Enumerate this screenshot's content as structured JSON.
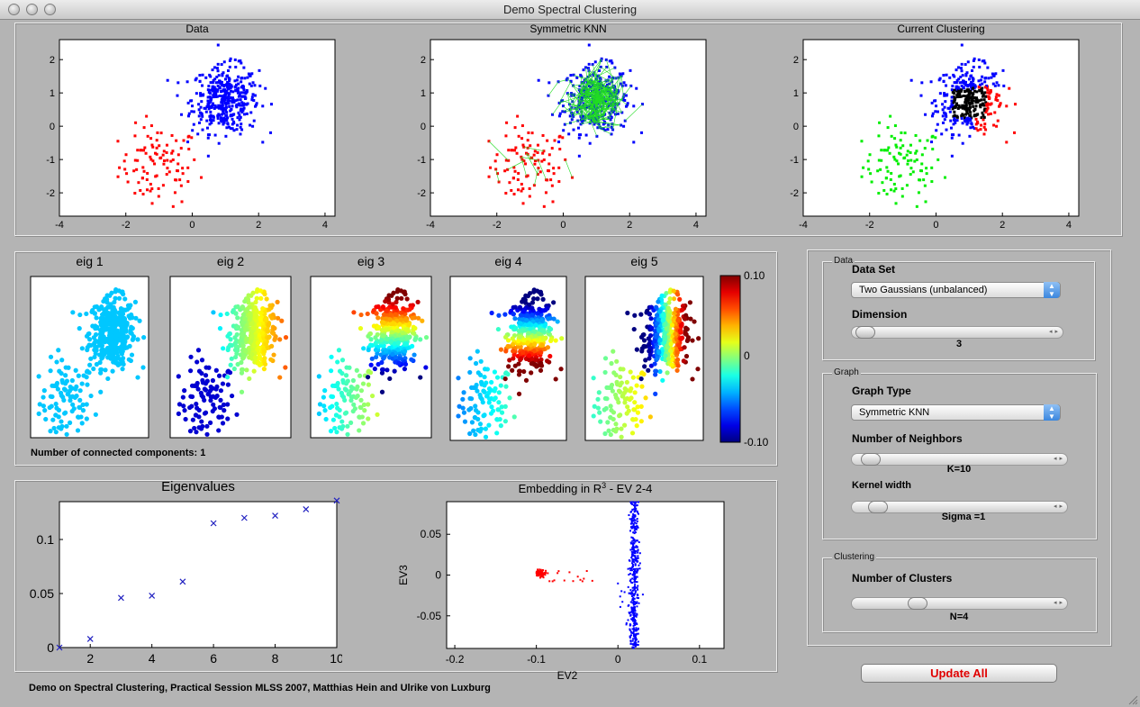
{
  "window": {
    "title": "Demo Spectral Clustering"
  },
  "plots": {
    "data": {
      "title": "Data"
    },
    "knn": {
      "title": "Symmetric KNN"
    },
    "current": {
      "title": "Current Clustering"
    }
  },
  "scatter_ticks": {
    "x": [
      "-4",
      "-2",
      "0",
      "2",
      "4"
    ],
    "y": [
      "2",
      "1",
      "0",
      "-1",
      "-2"
    ]
  },
  "eigs": {
    "titles": [
      "eig 1",
      "eig 2",
      "eig 3",
      "eig 4",
      "eig 5"
    ],
    "components_text": "Number of connected components: 1"
  },
  "colorbar": {
    "ticks": [
      "0.10",
      "0",
      "-0.10"
    ]
  },
  "eigenvalues": {
    "title": "Eigenvalues",
    "xticks": [
      "2",
      "4",
      "6",
      "8",
      "10"
    ],
    "yticks": [
      "0.1",
      "0.05",
      "0"
    ]
  },
  "embedding": {
    "title": "Embedding in R",
    "title_sup": "3",
    "title_suffix": " - EV 2-4",
    "xlabel": "EV2",
    "ylabel": "EV3",
    "xticks": [
      "-0.2",
      "-0.1",
      "0",
      "0.1"
    ],
    "yticks": [
      "0.05",
      "0",
      "-0.05"
    ]
  },
  "controls": {
    "data_group": "Data",
    "data_set_label": "Data Set",
    "data_set_value": "Two Gaussians (unbalanced)",
    "dimension_label": "Dimension",
    "dimension_value": "3",
    "graph_group": "Graph",
    "graph_type_label": "Graph Type",
    "graph_type_value": "Symmetric KNN",
    "neighbors_label": "Number of Neighbors",
    "neighbors_value": "K=10",
    "kernel_label": "Kernel width",
    "kernel_value": "Sigma =1",
    "clustering_group": "Clustering",
    "clusters_label": "Number of Clusters",
    "clusters_value": "N=4",
    "update_button": "Update All"
  },
  "footer": "Demo on Spectral Clustering, Practical Session MLSS 2007, Matthias Hein and Ulrike von Luxburg",
  "chart_data": [
    {
      "type": "scatter",
      "title": "Data",
      "xlim": [
        -4,
        4.3
      ],
      "ylim": [
        -2.7,
        2.6
      ],
      "xticks": [
        -4,
        -2,
        0,
        2,
        4
      ],
      "yticks": [
        -2,
        -1,
        0,
        1,
        2
      ],
      "series": [
        {
          "color": "#ff0000",
          "cluster_center": [
            -1,
            -1.2
          ],
          "approx_points": 100
        },
        {
          "color": "#0000ff",
          "cluster_center": [
            1,
            0.8
          ],
          "approx_points": 400
        }
      ]
    },
    {
      "type": "scatter",
      "title": "Symmetric KNN",
      "xlim": [
        -4,
        4.3
      ],
      "ylim": [
        -2.7,
        2.6
      ],
      "edges_color": "#00dd00"
    },
    {
      "type": "scatter",
      "title": "Current Clustering",
      "xlim": [
        -4,
        4.3
      ],
      "ylim": [
        -2.7,
        2.6
      ],
      "colors": [
        "#00ff00",
        "#0000ff",
        "#ff0000",
        "#000000"
      ]
    },
    {
      "type": "scatter",
      "title": "Eigenvalues",
      "x": [
        1,
        2,
        3,
        4,
        5,
        6,
        7,
        8,
        9,
        10
      ],
      "y": [
        0,
        0.008,
        0.046,
        0.048,
        0.061,
        0.115,
        0.12,
        0.122,
        0.128,
        0.136
      ],
      "xlim": [
        1,
        10
      ],
      "ylim": [
        0,
        0.135
      ],
      "marker": "x",
      "color": "#2020c0"
    },
    {
      "type": "scatter",
      "title": "Embedding in R3 - EV 2-4",
      "xlabel": "EV2",
      "ylabel": "EV3",
      "xlim": [
        -0.21,
        0.13
      ],
      "ylim": [
        -0.09,
        0.09
      ],
      "series": [
        {
          "color": "#ff0000",
          "approx_range_x": [
            -0.1,
            -0.03
          ]
        },
        {
          "color": "#0000ff",
          "approx_x": 0.02,
          "approx_range_y": [
            -0.09,
            0.09
          ]
        }
      ]
    }
  ]
}
